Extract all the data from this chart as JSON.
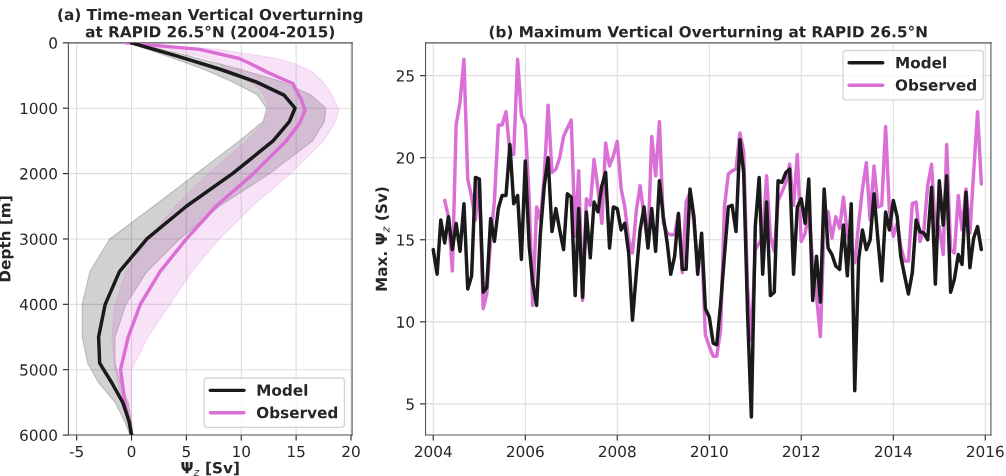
{
  "chart_data": [
    {
      "type": "line",
      "orientation": "horizontal",
      "title": "(a) Time-mean Vertical Overturning\nat RAPID 26.5°N (2004-2015)",
      "xlabel": "Ψ$_{z}$ [Sv]",
      "ylabel": "Depth [m]",
      "xlim": [
        -5.75,
        20.1
      ],
      "xticks": [
        -5,
        0,
        5,
        10,
        15,
        20
      ],
      "ylim": [
        6000,
        0
      ],
      "yticks": [
        0,
        1000,
        2000,
        3000,
        4000,
        5000,
        6000
      ],
      "grid": true,
      "legend": "bottom right",
      "series": [
        {
          "name": "Model",
          "color": "#1a1a1a",
          "x": [
            0,
            200,
            400,
            600,
            800,
            1000,
            1200,
            1500,
            2000,
            2500,
            3000,
            3500,
            4000,
            4500,
            4900,
            5200,
            5500,
            5800,
            6000
          ],
          "values": [
            0,
            4.1,
            8.0,
            11.4,
            13.9,
            14.9,
            14.4,
            12.9,
            9.2,
            5.0,
            1.4,
            -1.1,
            -2.4,
            -3.0,
            -2.9,
            -1.8,
            -0.8,
            -0.2,
            0
          ],
          "lower": [
            -0.3,
            3.2,
            6.5,
            9.2,
            11.5,
            12.3,
            12.0,
            9.8,
            5.9,
            2.0,
            -2.0,
            -3.8,
            -4.5,
            -4.5,
            -4.0,
            -3.0,
            -1.5,
            -0.6,
            -0.15
          ],
          "upper": [
            0.2,
            5.3,
            9.8,
            13.8,
            16.4,
            17.7,
            17.6,
            16.5,
            12.6,
            8.0,
            4.4,
            1.4,
            -0.5,
            -1.5,
            -1.5,
            -1.0,
            -0.3,
            0.0,
            0.15
          ]
        },
        {
          "name": "Observed",
          "color": "#da70d6",
          "x": [
            0,
            100,
            240,
            316,
            444,
            622,
            724,
            878,
            1031,
            1235,
            1500,
            2000,
            2500,
            3000,
            3500,
            4000,
            4500,
            5000,
            5500,
            6000
          ],
          "values": [
            -0.5,
            6.2,
            9.8,
            10.8,
            12.3,
            14.7,
            15.0,
            15.5,
            15.8,
            15.3,
            14.1,
            11.1,
            7.7,
            5.0,
            2.6,
            0.8,
            -0.3,
            -1.0,
            -0.6,
            0
          ],
          "lower": [
            -0.5,
            3.5,
            7.0,
            8.0,
            9.0,
            11.0,
            11.8,
            12.3,
            12.5,
            12.0,
            10.5,
            7.0,
            4.0,
            1.5,
            -0.5,
            -1.5,
            -1.8,
            -1.5,
            -0.8,
            0
          ],
          "upper": [
            -0.5,
            8.0,
            13.3,
            14.8,
            16.5,
            17.6,
            18.0,
            18.5,
            18.9,
            18.5,
            17.5,
            14.5,
            11.0,
            8.0,
            5.5,
            3.5,
            1.5,
            0,
            0,
            0
          ]
        }
      ]
    },
    {
      "type": "line",
      "title": "(b) Maximum Vertical Overturning at RAPID 26.5°N",
      "ylabel": "Max. Ψ$_{z}$ (Sv)",
      "xlim": [
        "2003-11-01",
        "2016-02-15"
      ],
      "xticks": [
        {
          "value": "2004",
          "label": "2004"
        },
        {
          "value": "2006",
          "label": "2006"
        },
        {
          "value": "2008",
          "label": "2008"
        },
        {
          "value": "2010",
          "label": "2010"
        },
        {
          "value": "2012",
          "label": "2012"
        },
        {
          "value": "2014",
          "label": "2014"
        },
        {
          "value": "2016",
          "label": "2016"
        }
      ],
      "ylim": [
        3.1,
        27
      ],
      "yticks": [
        5,
        10,
        15,
        20,
        25
      ],
      "grid": true,
      "legend": "top right",
      "x": [
        "2004-01",
        "2004-02",
        "2004-03",
        "2004-04",
        "2004-05",
        "2004-06",
        "2004-07",
        "2004-08",
        "2004-09",
        "2004-10",
        "2004-11",
        "2004-12",
        "2005-01",
        "2005-02",
        "2005-03",
        "2005-04",
        "2005-05",
        "2005-06",
        "2005-07",
        "2005-08",
        "2005-09",
        "2005-10",
        "2005-11",
        "2005-12",
        "2006-01",
        "2006-02",
        "2006-03",
        "2006-04",
        "2006-05",
        "2006-06",
        "2006-07",
        "2006-08",
        "2006-09",
        "2006-10",
        "2006-11",
        "2006-12",
        "2007-01",
        "2007-02",
        "2007-03",
        "2007-04",
        "2007-05",
        "2007-06",
        "2007-07",
        "2007-08",
        "2007-09",
        "2007-10",
        "2007-11",
        "2007-12",
        "2008-01",
        "2008-02",
        "2008-03",
        "2008-04",
        "2008-05",
        "2008-06",
        "2008-07",
        "2008-08",
        "2008-09",
        "2008-10",
        "2008-11",
        "2008-12",
        "2009-01",
        "2009-02",
        "2009-03",
        "2009-04",
        "2009-05",
        "2009-06",
        "2009-07",
        "2009-08",
        "2009-09",
        "2009-10",
        "2009-11",
        "2009-12",
        "2010-01",
        "2010-02",
        "2010-03",
        "2010-04",
        "2010-05",
        "2010-06",
        "2010-07",
        "2010-08",
        "2010-09",
        "2010-10",
        "2010-11",
        "2010-12",
        "2011-01",
        "2011-02",
        "2011-03",
        "2011-04",
        "2011-05",
        "2011-06",
        "2011-07",
        "2011-08",
        "2011-09",
        "2011-10",
        "2011-11",
        "2011-12",
        "2012-01",
        "2012-02",
        "2012-03",
        "2012-04",
        "2012-05",
        "2012-06",
        "2012-07",
        "2012-08",
        "2012-09",
        "2012-10",
        "2012-11",
        "2012-12",
        "2013-01",
        "2013-02",
        "2013-03",
        "2013-04",
        "2013-05",
        "2013-06",
        "2013-07",
        "2013-08",
        "2013-09",
        "2013-10",
        "2013-11",
        "2013-12",
        "2014-01",
        "2014-02",
        "2014-03",
        "2014-04",
        "2014-05",
        "2014-06",
        "2014-07",
        "2014-08",
        "2014-09",
        "2014-10",
        "2014-11",
        "2014-12",
        "2015-01",
        "2015-02",
        "2015-03",
        "2015-04",
        "2015-05",
        "2015-06",
        "2015-07",
        "2015-08",
        "2015-09",
        "2015-10",
        "2015-11",
        "2015-12"
      ],
      "series": [
        {
          "name": "Model",
          "color": "#1a1a1a",
          "values": [
            14.4,
            12.9,
            16.2,
            14.8,
            16.4,
            14.4,
            16.0,
            14.3,
            17.2,
            12.0,
            12.8,
            18.8,
            18.7,
            11.8,
            12.1,
            16.3,
            14.9,
            16.9,
            17.7,
            17.7,
            20.8,
            17.2,
            17.7,
            13.8,
            19.8,
            14.6,
            12.4,
            11.0,
            15.4,
            18.3,
            20.0,
            15.5,
            16.9,
            15.6,
            14.4,
            17.8,
            17.6,
            11.6,
            16.9,
            11.5,
            16.7,
            13.9,
            17.3,
            16.7,
            18.3,
            19.1,
            14.5,
            17.0,
            16.9,
            15.6,
            16.0,
            14.2,
            10.1,
            13.0,
            15.6,
            17.0,
            14.5,
            16.9,
            14.3,
            18.6,
            16.4,
            14.8,
            12.9,
            14.0,
            16.6,
            13.2,
            13.2,
            18.1,
            16.4,
            12.9,
            15.4,
            10.8,
            10.3,
            8.7,
            8.6,
            11.1,
            14.0,
            17.0,
            17.1,
            15.5,
            21.1,
            19.1,
            10.5,
            4.2,
            15.8,
            18.8,
            12.9,
            17.3,
            11.6,
            11.8,
            18.6,
            18.5,
            19.1,
            19.3,
            12.9,
            17.0,
            17.5,
            16.0,
            18.7,
            11.3,
            14.0,
            11.2,
            18.1,
            14.5,
            14.1,
            13.4,
            13.2,
            15.9,
            12.8,
            17.2,
            5.8,
            13.8,
            15.6,
            14.4,
            15.0,
            17.8,
            15.0,
            12.5,
            16.7,
            15.6,
            17.4,
            16.4,
            14.0,
            12.8,
            11.7,
            13.0,
            16.2,
            15.5,
            15.4,
            15.0,
            18.2,
            12.3,
            18.6,
            15.9,
            18.9,
            11.8,
            12.6,
            14.1,
            13.5,
            17.9,
            13.3,
            15.1,
            15.8,
            14.4
          ]
        },
        {
          "name": "Observed",
          "color": "#da70d6",
          "values": [
            null,
            null,
            null,
            17.4,
            16.4,
            13.1,
            22.0,
            23.4,
            26.0,
            18.7,
            17.6,
            16.2,
            18.7,
            10.8,
            11.7,
            15.0,
            17.4,
            22.0,
            22.0,
            22.8,
            20.3,
            20.2,
            26.0,
            22.6,
            22.0,
            17.5,
            11.0,
            17.0,
            16.2,
            18.9,
            23.2,
            19.1,
            19.3,
            20.0,
            21.3,
            21.8,
            22.3,
            15.2,
            19.2,
            11.3,
            17.5,
            17.1,
            19.9,
            18.1,
            16.0,
            20.9,
            19.5,
            20.1,
            21.0,
            18.1,
            17.0,
            15.0,
            14.2,
            16.8,
            18.3,
            16.4,
            14.7,
            21.3,
            18.9,
            22.2,
            16.0,
            15.4,
            15.3,
            15.3,
            16.6,
            13.0,
            17.3,
            17.9,
            16.0,
            13.6,
            14.8,
            9.2,
            8.5,
            7.9,
            7.9,
            9.5,
            17.0,
            19.0,
            19.2,
            19.3,
            21.5,
            20.4,
            12.1,
            8.9,
            14.4,
            14.8,
            15.1,
            18.9,
            15.2,
            14.3,
            17.4,
            17.9,
            18.5,
            19.6,
            17.1,
            20.2,
            14.9,
            15.4,
            16.7,
            13.6,
            11.6,
            9.1,
            16.0,
            16.7,
            15.1,
            16.4,
            15.7,
            17.6,
            15.3,
            14.6,
            13.6,
            16.0,
            18.1,
            19.7,
            16.2,
            19.5,
            17.0,
            17.1,
            21.9,
            16.8,
            15.2,
            16.0,
            14.6,
            13.7,
            13.7,
            17.2,
            17.3,
            14.9,
            15.6,
            18.3,
            19.6,
            15.5,
            15.8,
            14.1,
            20.8,
            14.4,
            14.2,
            17.7,
            15.6,
            18.1,
            15.4,
            19.1,
            22.8,
            18.4
          ]
        }
      ]
    }
  ]
}
